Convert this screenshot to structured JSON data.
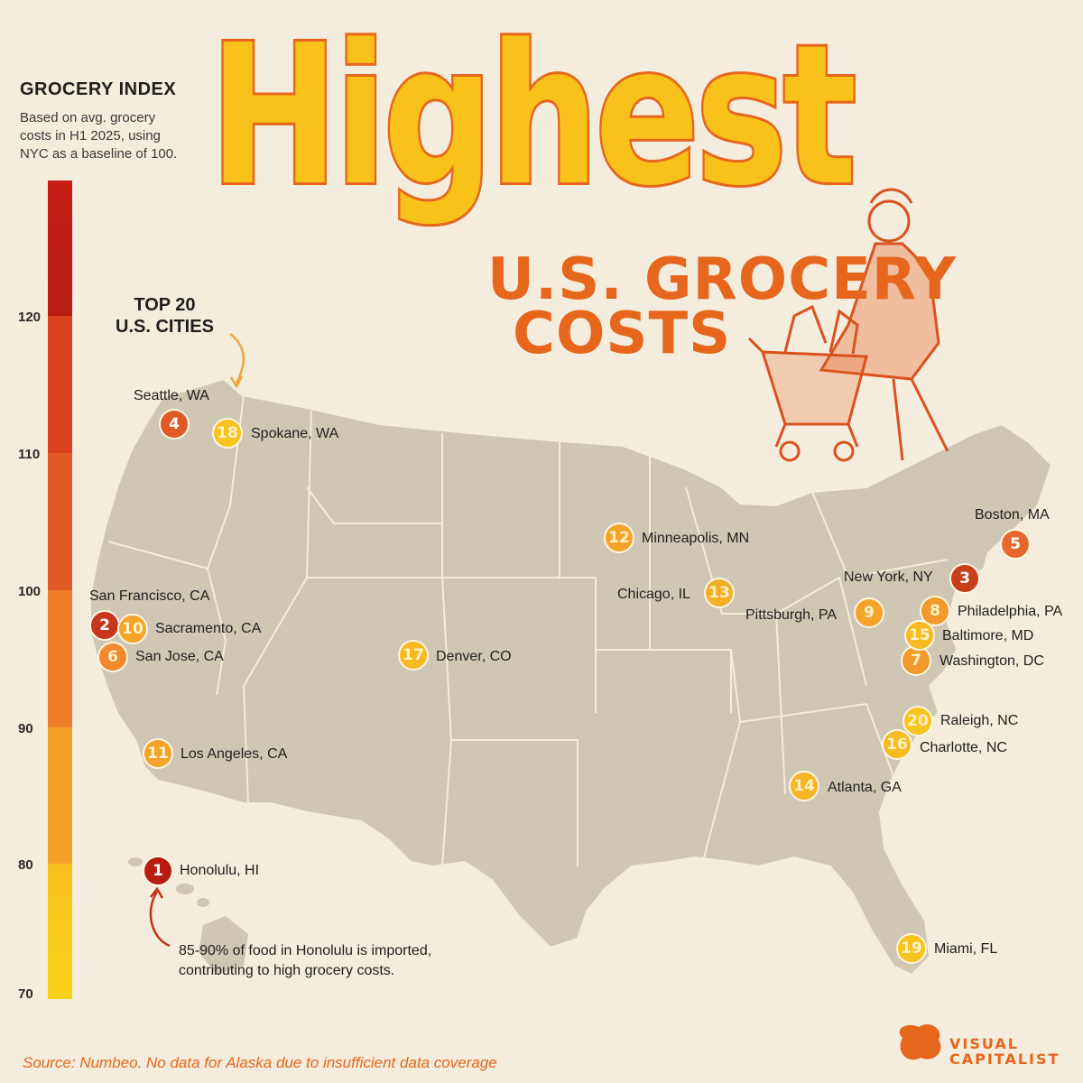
{
  "title": {
    "main": "Highest",
    "sub_line1": "U.S. GROCERY",
    "sub_line2": "COSTS"
  },
  "legend": {
    "title": "GROCERY INDEX",
    "description": "Based on avg. grocery costs in H1 2025, using NYC as a baseline of 100.",
    "ticks": [
      "120",
      "110",
      "100",
      "90",
      "80",
      "70"
    ],
    "colors": [
      "#b71c12",
      "#d9401d",
      "#e8672c",
      "#f39a2b",
      "#f7c31d"
    ]
  },
  "top20_label": {
    "line1": "TOP 20",
    "line2": "U.S. CITIES"
  },
  "cities": [
    {
      "rank": "1",
      "name": "Honolulu, HI",
      "color": "#b71c12"
    },
    {
      "rank": "2",
      "name": "San Francisco, CA",
      "color": "#c8351a"
    },
    {
      "rank": "3",
      "name": "New York, NY",
      "color": "#c8401a"
    },
    {
      "rank": "4",
      "name": "Seattle, WA",
      "color": "#e05a25"
    },
    {
      "rank": "5",
      "name": "Boston, MA",
      "color": "#e8672c"
    },
    {
      "rank": "6",
      "name": "San Jose, CA",
      "color": "#f08a2c"
    },
    {
      "rank": "7",
      "name": "Washington, DC",
      "color": "#f29a2b"
    },
    {
      "rank": "8",
      "name": "Philadelphia, PA",
      "color": "#f29a2b"
    },
    {
      "rank": "9",
      "name": "Pittsburgh, PA",
      "color": "#f4a42a"
    },
    {
      "rank": "10",
      "name": "Sacramento, CA",
      "color": "#f4a42a"
    },
    {
      "rank": "11",
      "name": "Los Angeles, CA",
      "color": "#f4a42a"
    },
    {
      "rank": "12",
      "name": "Minneapolis, MN",
      "color": "#f4a42a"
    },
    {
      "rank": "13",
      "name": "Chicago, IL",
      "color": "#f5ae26"
    },
    {
      "rank": "14",
      "name": "Atlanta, GA",
      "color": "#f5b524"
    },
    {
      "rank": "15",
      "name": "Baltimore, MD",
      "color": "#f6bb22"
    },
    {
      "rank": "16",
      "name": "Charlotte, NC",
      "color": "#f6bb22"
    },
    {
      "rank": "17",
      "name": "Denver, CO",
      "color": "#f6bb22"
    },
    {
      "rank": "18",
      "name": "Spokane, WA",
      "color": "#f7c31d"
    },
    {
      "rank": "19",
      "name": "Miami, FL",
      "color": "#f7c31d"
    },
    {
      "rank": "20",
      "name": "Raleigh, NC",
      "color": "#f7c31d"
    }
  ],
  "note": {
    "line1": "85-90% of food in Honolulu is imported,",
    "line2": "contributing to high grocery costs."
  },
  "source": "Source: Numbeo. No data for Alaska due to insufficient data coverage",
  "brand": {
    "line1": "VISUAL",
    "line2": "CAPITALIST"
  }
}
